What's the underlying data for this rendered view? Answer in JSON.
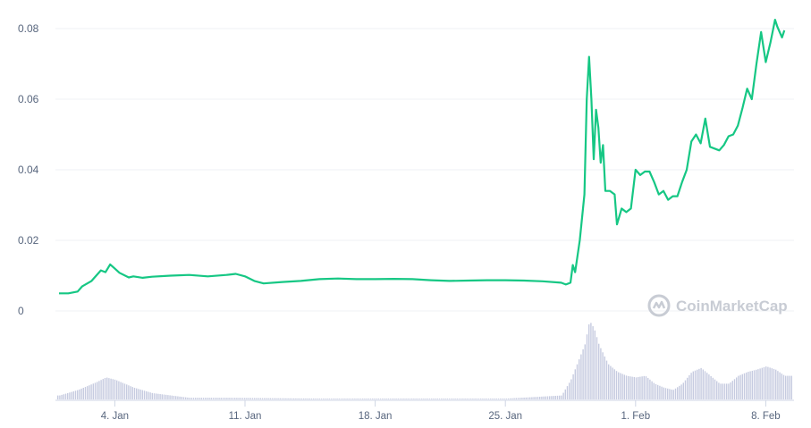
{
  "chart_data": {
    "type": "line",
    "title": "",
    "xlabel": "",
    "ylabel": "",
    "ylim": [
      0,
      0.085
    ],
    "y_ticks": [
      "0",
      "0.02",
      "0.04",
      "0.06",
      "0.08"
    ],
    "x_ticks": [
      "4. Jan",
      "11. Jan",
      "18. Jan",
      "25. Jan",
      "1. Feb",
      "8. Feb"
    ],
    "xlim": [
      "2021-01-01",
      "2021-02-09"
    ],
    "grid": true,
    "line_color": "#16c784",
    "volume_color": "#c6cbe0",
    "watermark": "CoinMarketCap",
    "series": [
      {
        "values": [
          [
            "2021-01-01",
            0.005
          ],
          [
            "2021-01-01T12",
            0.005
          ],
          [
            "2021-01-02",
            0.0055
          ],
          [
            "2021-01-02T06",
            0.007
          ],
          [
            "2021-01-02T18",
            0.0085
          ],
          [
            "2021-01-03",
            0.01
          ],
          [
            "2021-01-03T06",
            0.0115
          ],
          [
            "2021-01-03T12",
            0.011
          ],
          [
            "2021-01-03T18",
            0.0132
          ],
          [
            "2021-01-04",
            0.012
          ],
          [
            "2021-01-04T06",
            0.0108
          ],
          [
            "2021-01-04T18",
            0.0095
          ],
          [
            "2021-01-05",
            0.0098
          ],
          [
            "2021-01-05T12",
            0.0094
          ],
          [
            "2021-01-06",
            0.0097
          ],
          [
            "2021-01-07",
            0.01
          ],
          [
            "2021-01-08",
            0.0102
          ],
          [
            "2021-01-09",
            0.0098
          ],
          [
            "2021-01-10",
            0.0102
          ],
          [
            "2021-01-10T12",
            0.0105
          ],
          [
            "2021-01-11",
            0.0098
          ],
          [
            "2021-01-11T12",
            0.0085
          ],
          [
            "2021-01-12",
            0.0078
          ],
          [
            "2021-01-13",
            0.0082
          ],
          [
            "2021-01-14",
            0.0085
          ],
          [
            "2021-01-15",
            0.009
          ],
          [
            "2021-01-16",
            0.0092
          ],
          [
            "2021-01-17",
            0.009
          ],
          [
            "2021-01-18",
            0.009
          ],
          [
            "2021-01-19",
            0.0091
          ],
          [
            "2021-01-20",
            0.009
          ],
          [
            "2021-01-21",
            0.0087
          ],
          [
            "2021-01-22",
            0.0085
          ],
          [
            "2021-01-23",
            0.0086
          ],
          [
            "2021-01-24",
            0.0087
          ],
          [
            "2021-01-25",
            0.0087
          ],
          [
            "2021-01-26",
            0.0086
          ],
          [
            "2021-01-27",
            0.0084
          ],
          [
            "2021-01-28",
            0.008
          ],
          [
            "2021-01-28T06",
            0.0075
          ],
          [
            "2021-01-28T12",
            0.008
          ],
          [
            "2021-01-28T15",
            0.013
          ],
          [
            "2021-01-28T18",
            0.011
          ],
          [
            "2021-01-29",
            0.02
          ],
          [
            "2021-01-29T06",
            0.033
          ],
          [
            "2021-01-29T09",
            0.06
          ],
          [
            "2021-01-29T12",
            0.072
          ],
          [
            "2021-01-29T15",
            0.06
          ],
          [
            "2021-01-29T18",
            0.043
          ],
          [
            "2021-01-29T21",
            0.057
          ],
          [
            "2021-01-30",
            0.052
          ],
          [
            "2021-01-30T03",
            0.042
          ],
          [
            "2021-01-30T06",
            0.047
          ],
          [
            "2021-01-30T09",
            0.034
          ],
          [
            "2021-01-30T15",
            0.034
          ],
          [
            "2021-01-30T21",
            0.033
          ],
          [
            "2021-01-31",
            0.0245
          ],
          [
            "2021-01-31T06",
            0.029
          ],
          [
            "2021-01-31T12",
            0.028
          ],
          [
            "2021-01-31T18",
            0.029
          ],
          [
            "2021-02-01",
            0.04
          ],
          [
            "2021-02-01T06",
            0.0385
          ],
          [
            "2021-02-01T12",
            0.0395
          ],
          [
            "2021-02-01T18",
            0.0395
          ],
          [
            "2021-02-02",
            0.0365
          ],
          [
            "2021-02-02T06",
            0.033
          ],
          [
            "2021-02-02T12",
            0.034
          ],
          [
            "2021-02-02T18",
            0.0315
          ],
          [
            "2021-02-03",
            0.0325
          ],
          [
            "2021-02-03T06",
            0.0325
          ],
          [
            "2021-02-03T12",
            0.0365
          ],
          [
            "2021-02-03T18",
            0.04
          ],
          [
            "2021-02-04",
            0.048
          ],
          [
            "2021-02-04T06",
            0.05
          ],
          [
            "2021-02-04T12",
            0.0475
          ],
          [
            "2021-02-04T18",
            0.0545
          ],
          [
            "2021-02-05",
            0.0465
          ],
          [
            "2021-02-05T12",
            0.0455
          ],
          [
            "2021-02-05T18",
            0.047
          ],
          [
            "2021-02-06",
            0.0495
          ],
          [
            "2021-02-06T06",
            0.05
          ],
          [
            "2021-02-06T12",
            0.0525
          ],
          [
            "2021-02-06T18",
            0.0575
          ],
          [
            "2021-02-07",
            0.063
          ],
          [
            "2021-02-07T06",
            0.06
          ],
          [
            "2021-02-07T12",
            0.07
          ],
          [
            "2021-02-07T18",
            0.079
          ],
          [
            "2021-02-08",
            0.0705
          ],
          [
            "2021-02-08T06",
            0.076
          ],
          [
            "2021-02-08T12",
            0.0825
          ],
          [
            "2021-02-08T15",
            0.0805
          ],
          [
            "2021-02-08T21",
            0.0775
          ],
          [
            "2021-02-09",
            0.0795
          ]
        ]
      }
    ],
    "volume": [
      [
        "2021-01-01",
        0.05
      ],
      [
        "2021-01-02",
        0.12
      ],
      [
        "2021-01-03",
        0.22
      ],
      [
        "2021-01-03T12",
        0.28
      ],
      [
        "2021-01-04",
        0.25
      ],
      [
        "2021-01-05",
        0.15
      ],
      [
        "2021-01-06",
        0.08
      ],
      [
        "2021-01-07",
        0.05
      ],
      [
        "2021-01-08",
        0.02
      ],
      [
        "2021-01-10",
        0.02
      ],
      [
        "2021-01-15",
        0.01
      ],
      [
        "2021-01-20",
        0.01
      ],
      [
        "2021-01-25",
        0.01
      ],
      [
        "2021-01-28",
        0.05
      ],
      [
        "2021-01-28T12",
        0.25
      ],
      [
        "2021-01-29",
        0.55
      ],
      [
        "2021-01-29T06",
        0.7
      ],
      [
        "2021-01-29T12",
        1.0
      ],
      [
        "2021-01-29T18",
        0.9
      ],
      [
        "2021-01-30",
        0.7
      ],
      [
        "2021-01-30T12",
        0.45
      ],
      [
        "2021-01-31",
        0.35
      ],
      [
        "2021-01-31T12",
        0.3
      ],
      [
        "2021-02-01",
        0.28
      ],
      [
        "2021-02-01T12",
        0.3
      ],
      [
        "2021-02-02",
        0.2
      ],
      [
        "2021-02-02T12",
        0.15
      ],
      [
        "2021-02-03",
        0.12
      ],
      [
        "2021-02-03T12",
        0.2
      ],
      [
        "2021-02-04",
        0.35
      ],
      [
        "2021-02-04T12",
        0.4
      ],
      [
        "2021-02-05",
        0.3
      ],
      [
        "2021-02-05T12",
        0.2
      ],
      [
        "2021-02-06",
        0.2
      ],
      [
        "2021-02-06T12",
        0.3
      ],
      [
        "2021-02-07",
        0.35
      ],
      [
        "2021-02-07T12",
        0.38
      ],
      [
        "2021-02-08",
        0.42
      ],
      [
        "2021-02-08T12",
        0.38
      ],
      [
        "2021-02-09",
        0.3
      ]
    ]
  }
}
